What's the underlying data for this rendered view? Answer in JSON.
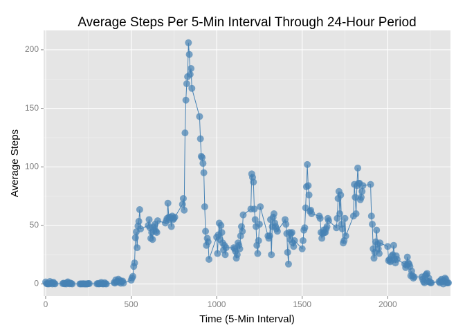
{
  "chart_data": {
    "type": "line",
    "title": "Average Steps Per 5-Min Interval Through 24-Hour Period",
    "x_label": "Time (5-Min Interval)",
    "y_label": "Average Steps",
    "color": "#4682b4",
    "grid": true,
    "xlim": [
      -12,
      2367
    ],
    "ylim": [
      -10.3,
      216.5
    ],
    "xticks": [
      0,
      500,
      1000,
      1500,
      2000
    ],
    "yticks": [
      0,
      50,
      100,
      150,
      200
    ],
    "x": [
      0,
      5,
      10,
      15,
      20,
      25,
      30,
      35,
      40,
      45,
      50,
      55,
      100,
      105,
      110,
      115,
      120,
      125,
      130,
      135,
      140,
      145,
      150,
      155,
      200,
      205,
      210,
      215,
      220,
      225,
      230,
      235,
      240,
      245,
      250,
      255,
      300,
      305,
      310,
      315,
      320,
      325,
      330,
      335,
      340,
      345,
      350,
      355,
      400,
      405,
      410,
      415,
      420,
      425,
      430,
      435,
      440,
      445,
      450,
      455,
      500,
      505,
      510,
      515,
      520,
      525,
      530,
      535,
      540,
      545,
      550,
      555,
      600,
      605,
      610,
      615,
      620,
      625,
      630,
      635,
      640,
      645,
      650,
      655,
      700,
      705,
      710,
      715,
      720,
      725,
      730,
      735,
      740,
      745,
      750,
      755,
      800,
      805,
      810,
      815,
      820,
      825,
      830,
      835,
      840,
      845,
      850,
      855,
      900,
      905,
      910,
      915,
      920,
      925,
      930,
      935,
      940,
      945,
      950,
      955,
      1000,
      1005,
      1010,
      1015,
      1020,
      1025,
      1030,
      1035,
      1040,
      1045,
      1050,
      1055,
      1100,
      1105,
      1110,
      1115,
      1120,
      1125,
      1130,
      1135,
      1140,
      1145,
      1150,
      1155,
      1200,
      1205,
      1210,
      1215,
      1220,
      1225,
      1230,
      1235,
      1240,
      1245,
      1250,
      1255,
      1300,
      1305,
      1310,
      1315,
      1320,
      1325,
      1330,
      1335,
      1340,
      1345,
      1350,
      1355,
      1400,
      1405,
      1410,
      1415,
      1420,
      1425,
      1430,
      1435,
      1440,
      1445,
      1450,
      1455,
      1500,
      1505,
      1510,
      1515,
      1520,
      1525,
      1530,
      1535,
      1540,
      1545,
      1550,
      1555,
      1600,
      1605,
      1610,
      1615,
      1620,
      1625,
      1630,
      1635,
      1640,
      1645,
      1650,
      1655,
      1700,
      1705,
      1710,
      1715,
      1720,
      1725,
      1730,
      1735,
      1740,
      1745,
      1750,
      1755,
      1800,
      1805,
      1810,
      1815,
      1820,
      1825,
      1830,
      1835,
      1840,
      1845,
      1850,
      1855,
      1900,
      1905,
      1910,
      1915,
      1920,
      1925,
      1930,
      1935,
      1940,
      1945,
      1950,
      1955,
      2000,
      2005,
      2010,
      2015,
      2020,
      2025,
      2030,
      2035,
      2040,
      2045,
      2050,
      2055,
      2100,
      2105,
      2110,
      2115,
      2120,
      2125,
      2130,
      2135,
      2140,
      2145,
      2150,
      2155,
      2200,
      2205,
      2210,
      2215,
      2220,
      2225,
      2230,
      2235,
      2240,
      2245,
      2250,
      2255,
      2300,
      2305,
      2310,
      2315,
      2320,
      2325,
      2330,
      2335,
      2340,
      2345,
      2350,
      2355
    ],
    "values": [
      1.7,
      0.3,
      0.1,
      0.2,
      0.1,
      2.1,
      0.5,
      0.9,
      0,
      1.5,
      0.3,
      0.1,
      0.3,
      0.7,
      0.2,
      0.3,
      0,
      1.1,
      1.8,
      0.4,
      0.2,
      0.8,
      0.3,
      0,
      0,
      0.1,
      0.1,
      0.1,
      0.2,
      0.1,
      0,
      0,
      0,
      0.2,
      0.3,
      0.3,
      0.1,
      0.4,
      0.1,
      0.1,
      0.3,
      1.4,
      0.2,
      0.1,
      0.1,
      1.1,
      0.2,
      0,
      1.2,
      0.8,
      3.5,
      1.7,
      2.4,
      4.1,
      1.5,
      3.0,
      0.6,
      2.1,
      2.5,
      0.8,
      3.2,
      5.1,
      6.5,
      15,
      18,
      39.5,
      44.5,
      31,
      49.5,
      53.5,
      63.5,
      47,
      50,
      55,
      48,
      39,
      44,
      38,
      46,
      49,
      51,
      45,
      44,
      54,
      52,
      54,
      56,
      69,
      57,
      55,
      57,
      49,
      58,
      55,
      56,
      57,
      68,
      73,
      63,
      129,
      157,
      171,
      177,
      206,
      196,
      179,
      184,
      167,
      143,
      124,
      109,
      108,
      103,
      95,
      66,
      45,
      33,
      39,
      36,
      21,
      40,
      26,
      42,
      52,
      38,
      50,
      44,
      35,
      29,
      33,
      25,
      31,
      31,
      30,
      28,
      22,
      25,
      35,
      33,
      30,
      41,
      49,
      45,
      59,
      64,
      94,
      91,
      87,
      64,
      55,
      49,
      33,
      26,
      37,
      51,
      66,
      41,
      39,
      41,
      55,
      25,
      49,
      57,
      60,
      52,
      49,
      47,
      45,
      55,
      51,
      43,
      27,
      17,
      44,
      38,
      43,
      44,
      35,
      32,
      37,
      30,
      37,
      46,
      48,
      65,
      83,
      102,
      84,
      76,
      62,
      63,
      60,
      58,
      56,
      44,
      39,
      43,
      46,
      44,
      44,
      47,
      49,
      56,
      54,
      48,
      56,
      73,
      79,
      60,
      76,
      51,
      47,
      35,
      37,
      56,
      41,
      58,
      85,
      74,
      60,
      84,
      99,
      86,
      86,
      72,
      74,
      79,
      84,
      85,
      58,
      51,
      30,
      22,
      27,
      36,
      46,
      34,
      30,
      26,
      35,
      32,
      20,
      21,
      19,
      20,
      24,
      25,
      33,
      21,
      18,
      24,
      21,
      17,
      14,
      16,
      23,
      18,
      17,
      15,
      7,
      11,
      7,
      5,
      6,
      6,
      4,
      2,
      1,
      7,
      8,
      9,
      2,
      5,
      2,
      1,
      1,
      2,
      1,
      3,
      4,
      2,
      0,
      3,
      5,
      4,
      1,
      1,
      1
    ]
  }
}
